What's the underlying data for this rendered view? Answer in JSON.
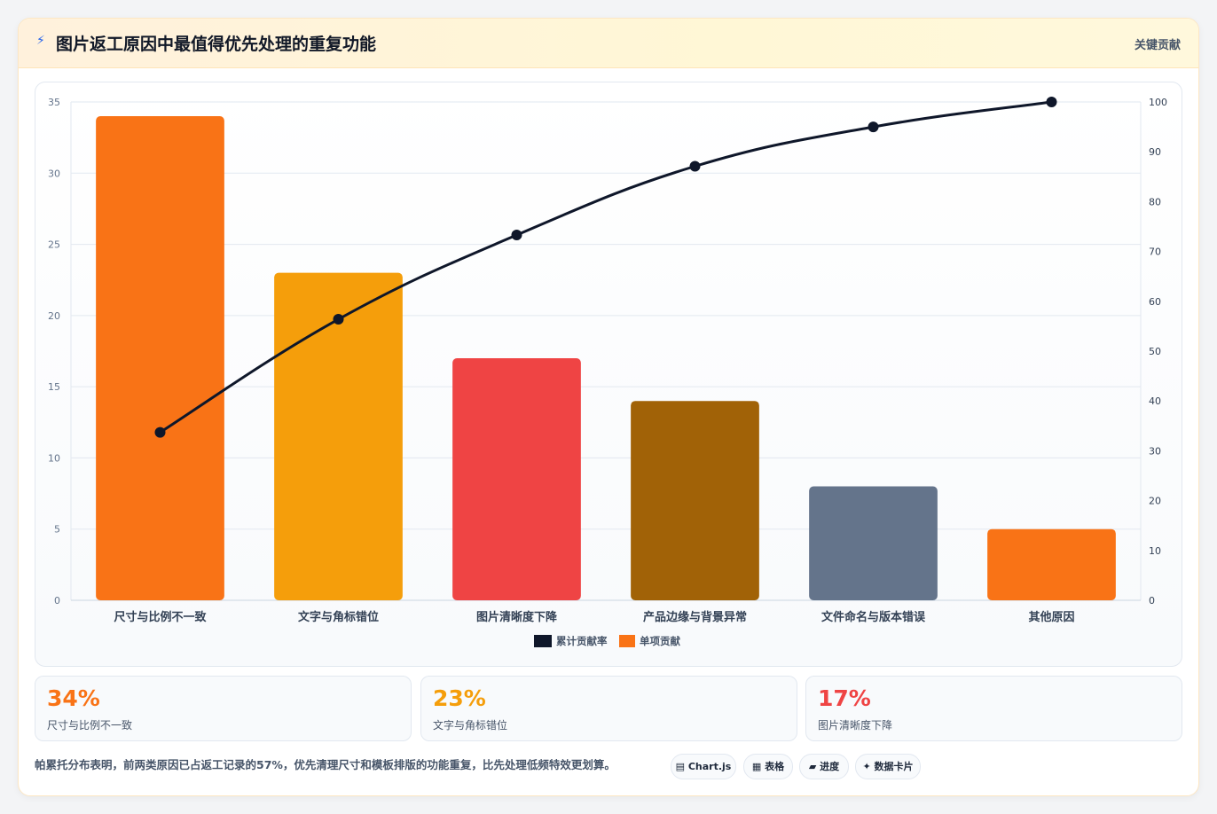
{
  "header": {
    "icon": "lightning-icon",
    "title": "图片返工原因中最值得优先处理的重复功能",
    "tag": "关键贡献"
  },
  "chart_data": {
    "type": "bar",
    "categories": [
      "尺寸与比例不一致",
      "文字与角标错位",
      "图片清晰度下降",
      "产品边缘与背景异常",
      "文件命名与版本错误",
      "其他原因"
    ],
    "series": [
      {
        "name": "单项贡献",
        "type": "bar",
        "axis": "left",
        "values": [
          34,
          23,
          17,
          14,
          8,
          5
        ],
        "colors": [
          "#f97316",
          "#f59e0b",
          "#ef4444",
          "#a16207",
          "#64748b",
          "#f97316"
        ]
      },
      {
        "name": "累计贡献率",
        "type": "line",
        "axis": "right",
        "values": [
          33.7,
          56.4,
          73.3,
          87.1,
          95.0,
          100
        ],
        "color": "#0f172a"
      }
    ],
    "ylim": [
      0,
      35
    ],
    "yticks": [
      0,
      5,
      10,
      15,
      20,
      25,
      30,
      35
    ],
    "y2lim": [
      0,
      100
    ],
    "y2ticks": [
      0,
      10,
      20,
      30,
      40,
      50,
      60,
      70,
      80,
      90,
      100
    ],
    "legend": "bottom-center",
    "grid": true
  },
  "stats": [
    {
      "value": "34%",
      "label": "尺寸与比例不一致",
      "color": "#f97316"
    },
    {
      "value": "23%",
      "label": "文字与角标错位",
      "color": "#f59e0b"
    },
    {
      "value": "17%",
      "label": "图片清晰度下降",
      "color": "#ef4444"
    }
  ],
  "summary": "帕累托分布表明，前两类原因已占返工记录的57%，优先清理尺寸和模板排版的功能重复，比先处理低频特效更划算。",
  "chips": [
    {
      "label": "▤ Chart.js",
      "icon": "chart-icon"
    },
    {
      "label": "▦ 表格",
      "icon": "table-icon"
    },
    {
      "label": "▰ 进度",
      "icon": "progress-icon"
    },
    {
      "label": "✦ 数据卡片",
      "icon": "sparkle-icon"
    }
  ]
}
